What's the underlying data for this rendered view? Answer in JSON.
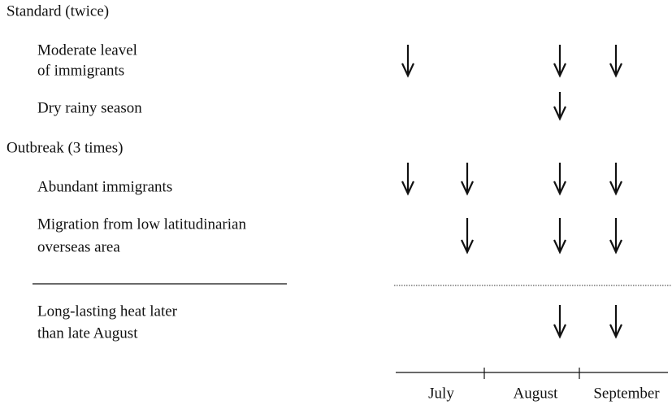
{
  "sections": [
    {
      "title": "Standard (twice)",
      "rows": [
        {
          "label": [
            "Moderate leavel",
            "of immigrants"
          ]
        },
        {
          "label": [
            "Dry rainy season"
          ]
        }
      ]
    },
    {
      "title": "Outbreak (3 times)",
      "rows": [
        {
          "label": [
            "Abundant immigrants"
          ]
        },
        {
          "label": [
            "Migration from low latitudinarian",
            "overseas area"
          ]
        },
        {
          "label": [
            "Long-lasting heat later",
            "than late August"
          ]
        }
      ]
    }
  ],
  "months": [
    "July",
    "August",
    "September"
  ]
}
